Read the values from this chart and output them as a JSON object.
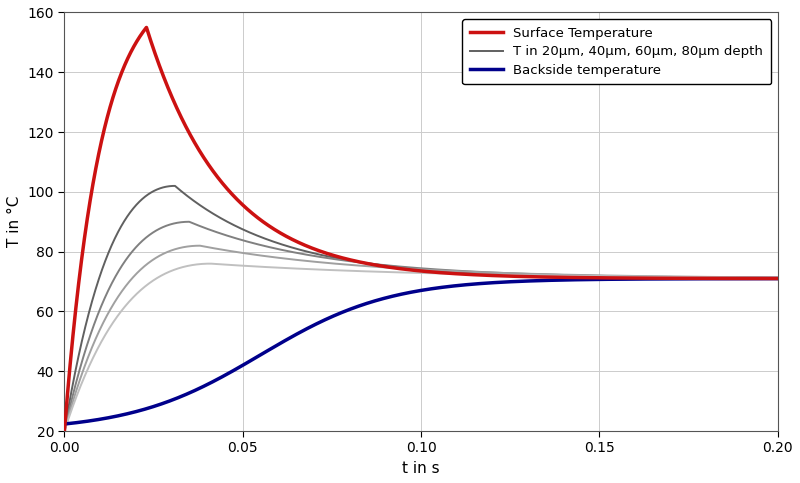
{
  "title": "",
  "xlabel": "t in s",
  "ylabel": "T in °C",
  "xlim": [
    0.0,
    0.2
  ],
  "ylim": [
    20,
    160
  ],
  "yticks": [
    20,
    40,
    60,
    80,
    100,
    120,
    140,
    160
  ],
  "xticks": [
    0.0,
    0.05,
    0.1,
    0.15,
    0.2
  ],
  "steady_state": 71.0,
  "T_init": 20.0,
  "surface": {
    "peak": 155.0,
    "peak_time": 0.023,
    "tau_rise": 0.01,
    "tau_fall": 0.022,
    "color": "#cc1111",
    "linewidth": 2.5,
    "label": "Surface Temperature"
  },
  "depths": {
    "peaks": [
      102.0,
      90.0,
      82.0,
      76.0
    ],
    "peak_times": [
      0.031,
      0.035,
      0.038,
      0.041
    ],
    "tau_falls": [
      0.03,
      0.038,
      0.048,
      0.06
    ],
    "shades": [
      "#606060",
      "#808080",
      "#a0a0a0",
      "#c0c0c0"
    ],
    "linewidth": 1.4,
    "label": "T in 20μm, 40μm, 60μm, 80μm depth"
  },
  "backside": {
    "color": "#00008b",
    "linewidth": 2.5,
    "label": "Backside temperature",
    "k": 55.0,
    "t0": 0.055
  },
  "legend": {
    "loc": "upper right",
    "fontsize": 9.5
  },
  "grid_color": "#cccccc",
  "background_color": "#ffffff"
}
